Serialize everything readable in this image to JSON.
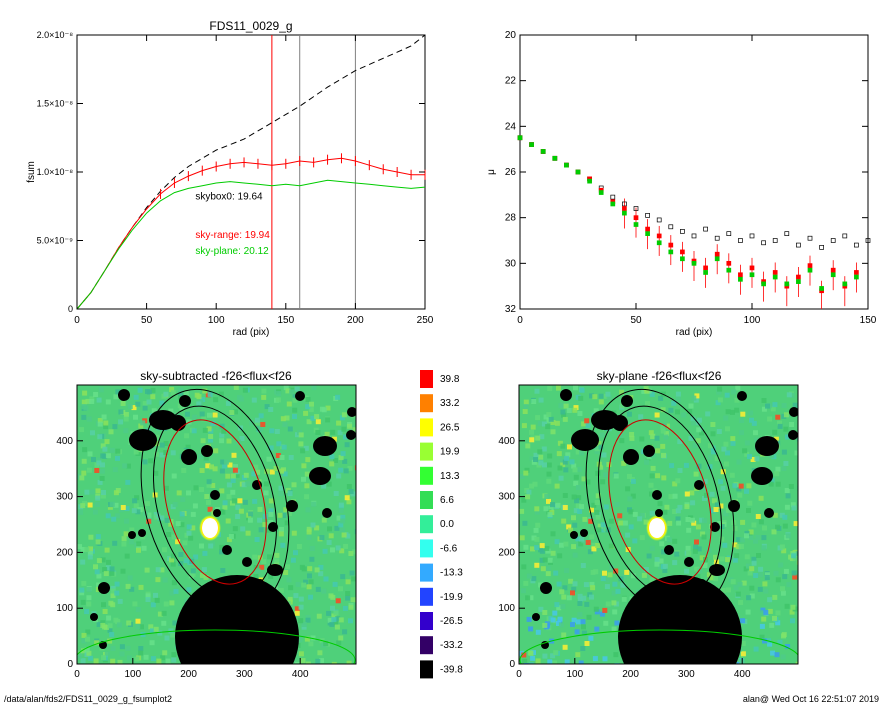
{
  "footer": {
    "path": "/data/alan/fds2/FDS11_0029_g_fsumplot2",
    "user": "alan@",
    "timestamp": "Wed Oct 16 22:51:07 2019"
  },
  "colors": {
    "observed": "#000000",
    "sky_range": "#ff0000",
    "sky_plane": "#00cc00",
    "marker_red": "#ff0000",
    "marker_gray": "#808080"
  },
  "chart_data": [
    {
      "id": "fsum",
      "type": "line",
      "title": "FDS11_0029_g",
      "xlabel": "rad (pix)",
      "ylabel": "fsum",
      "xlim": [
        0,
        250
      ],
      "ylim": [
        0,
        2e-08
      ],
      "xticks": [
        0,
        50,
        100,
        150,
        200,
        250
      ],
      "yticks": [
        0,
        5e-09,
        1e-08,
        1.5e-08,
        2e-08
      ],
      "ytick_labels": [
        "0",
        "5.0×10⁻⁹",
        "1.0×10⁻⁸",
        "1.5×10⁻⁸",
        "2.0×10⁻⁸"
      ],
      "vlines": [
        {
          "x": 140,
          "color": "#ff0000"
        },
        {
          "x": 160,
          "color": "#808080"
        },
        {
          "x": 200,
          "color": "#808080"
        }
      ],
      "annotations": [
        {
          "text": "skybox0: 19.64",
          "color": "#000000",
          "x": 85,
          "y": 8e-09
        },
        {
          "text": "sky-range: 19.94",
          "color": "#ff0000",
          "x": 85,
          "y": 5.2e-09
        },
        {
          "text": "sky-plane: 20.12",
          "color": "#00cc00",
          "x": 85,
          "y": 4e-09
        }
      ],
      "series": [
        {
          "color": "#000000",
          "style": "dashed",
          "x": [
            0,
            10,
            20,
            30,
            40,
            50,
            60,
            70,
            80,
            90,
            100,
            120,
            140,
            160,
            180,
            200,
            220,
            240,
            250
          ],
          "y": [
            0,
            1.2e-09,
            2.8e-09,
            4.5e-09,
            6e-09,
            7.4e-09,
            8.6e-09,
            9.6e-09,
            1.04e-08,
            1.1e-08,
            1.16e-08,
            1.24e-08,
            1.36e-08,
            1.48e-08,
            1.62e-08,
            1.74e-08,
            1.83e-08,
            1.92e-08,
            2e-08
          ]
        },
        {
          "color": "#ff0000",
          "style": "solid",
          "errorbars": true,
          "x": [
            0,
            10,
            20,
            30,
            40,
            50,
            60,
            70,
            80,
            90,
            100,
            110,
            120,
            130,
            140,
            150,
            160,
            170,
            180,
            190,
            200,
            210,
            220,
            230,
            240,
            250
          ],
          "y": [
            0,
            1.2e-09,
            2.8e-09,
            4.5e-09,
            6e-09,
            7.3e-09,
            8.4e-09,
            9.2e-09,
            9.7e-09,
            1.01e-08,
            1.04e-08,
            1.06e-08,
            1.07e-08,
            1.06e-08,
            1.05e-08,
            1.06e-08,
            1.08e-08,
            1.07e-08,
            1.09e-08,
            1.1e-08,
            1.08e-08,
            1.05e-08,
            1.02e-08,
            1e-08,
            9.8e-09,
            9.8e-09
          ]
        },
        {
          "color": "#00cc00",
          "style": "solid",
          "x": [
            0,
            10,
            20,
            30,
            40,
            50,
            60,
            70,
            80,
            90,
            100,
            110,
            120,
            130,
            140,
            150,
            160,
            170,
            180,
            190,
            200,
            210,
            220,
            230,
            240,
            250
          ],
          "y": [
            0,
            1.2e-09,
            2.8e-09,
            4.4e-09,
            5.8e-09,
            7e-09,
            7.9e-09,
            8.5e-09,
            8.8e-09,
            9e-09,
            9.2e-09,
            9.3e-09,
            9.2e-09,
            9.1e-09,
            9e-09,
            9.1e-09,
            9e-09,
            9.2e-09,
            9.4e-09,
            9.3e-09,
            9.2e-09,
            9.1e-09,
            9e-09,
            8.9e-09,
            8.8e-09,
            8.9e-09
          ]
        }
      ]
    },
    {
      "id": "mu",
      "type": "scatter",
      "title": "",
      "xlabel": "rad (pix)",
      "ylabel": "μ",
      "xlim": [
        0,
        150
      ],
      "ylim": [
        32,
        20
      ],
      "xticks": [
        0,
        50,
        100,
        150
      ],
      "yticks": [
        20,
        22,
        24,
        26,
        28,
        30,
        32
      ],
      "series": [
        {
          "marker": "square-open",
          "color": "#000000",
          "x": [
            0,
            5,
            10,
            15,
            20,
            25,
            30,
            35,
            40,
            45,
            50,
            55,
            60,
            65,
            70,
            75,
            80,
            85,
            90,
            95,
            100,
            105,
            110,
            115,
            120,
            125,
            130,
            135,
            140,
            145,
            150
          ],
          "y": [
            24.5,
            24.8,
            25.1,
            25.4,
            25.7,
            26.0,
            26.3,
            26.7,
            27.1,
            27.4,
            27.6,
            27.9,
            28.1,
            28.4,
            28.6,
            28.8,
            28.5,
            28.9,
            28.7,
            29.0,
            28.8,
            29.1,
            29.0,
            28.7,
            29.2,
            28.9,
            29.3,
            29.0,
            28.8,
            29.2,
            29.0
          ]
        },
        {
          "marker": "square-filled",
          "color": "#ff0000",
          "x": [
            0,
            5,
            10,
            15,
            20,
            25,
            30,
            35,
            40,
            45,
            50,
            55,
            60,
            65,
            70,
            75,
            80,
            85,
            90,
            95,
            100,
            105,
            110,
            115,
            120,
            125,
            130,
            135,
            140,
            145
          ],
          "y": [
            24.5,
            24.8,
            25.1,
            25.4,
            25.7,
            26.0,
            26.3,
            26.8,
            27.3,
            27.6,
            28.0,
            28.5,
            28.8,
            29.2,
            29.5,
            29.9,
            30.2,
            29.6,
            30.0,
            30.5,
            30.2,
            30.8,
            30.4,
            31.0,
            30.6,
            30.1,
            31.2,
            30.3,
            31.0,
            30.4
          ]
        },
        {
          "marker": "square-filled",
          "color": "#00cc00",
          "x": [
            0,
            5,
            10,
            15,
            20,
            25,
            30,
            35,
            40,
            45,
            50,
            55,
            60,
            65,
            70,
            75,
            80,
            85,
            90,
            95,
            100,
            105,
            110,
            115,
            120,
            125,
            130,
            135,
            140,
            145
          ],
          "y": [
            24.5,
            24.8,
            25.1,
            25.4,
            25.7,
            26.0,
            26.4,
            26.9,
            27.4,
            27.8,
            28.3,
            28.7,
            29.1,
            29.5,
            29.8,
            30.0,
            30.4,
            29.8,
            30.3,
            30.7,
            30.5,
            30.9,
            30.6,
            30.9,
            30.8,
            30.3,
            31.1,
            30.5,
            30.9,
            30.6
          ]
        }
      ]
    },
    {
      "id": "sky-subtracted",
      "type": "heatmap",
      "title": "sky-subtracted -f26<flux<f26",
      "xlim": [
        0,
        500
      ],
      "ylim": [
        0,
        500
      ],
      "xticks": [
        0,
        100,
        200,
        300,
        400
      ],
      "yticks": [
        0,
        100,
        200,
        300,
        400
      ]
    },
    {
      "id": "sky-plane",
      "type": "heatmap",
      "title": "sky-plane -f26<flux<f26",
      "xlim": [
        0,
        500
      ],
      "ylim": [
        0,
        500
      ],
      "xticks": [
        0,
        100,
        200,
        300,
        400
      ],
      "yticks": [
        0,
        100,
        200,
        300,
        400
      ]
    },
    {
      "id": "colorbar",
      "type": "table",
      "labels": [
        "39.8",
        "33.2",
        "26.5",
        "19.9",
        "13.3",
        "6.6",
        "0.0",
        "-6.6",
        "-13.3",
        "-19.9",
        "-26.5",
        "-33.2",
        "-39.8"
      ],
      "colors": [
        "#ff0000",
        "#ff8000",
        "#ffff00",
        "#99ff33",
        "#33ff33",
        "#33dd55",
        "#33ee99",
        "#33ffee",
        "#33aaff",
        "#2244ff",
        "#3300cc",
        "#330066",
        "#000000"
      ]
    }
  ]
}
